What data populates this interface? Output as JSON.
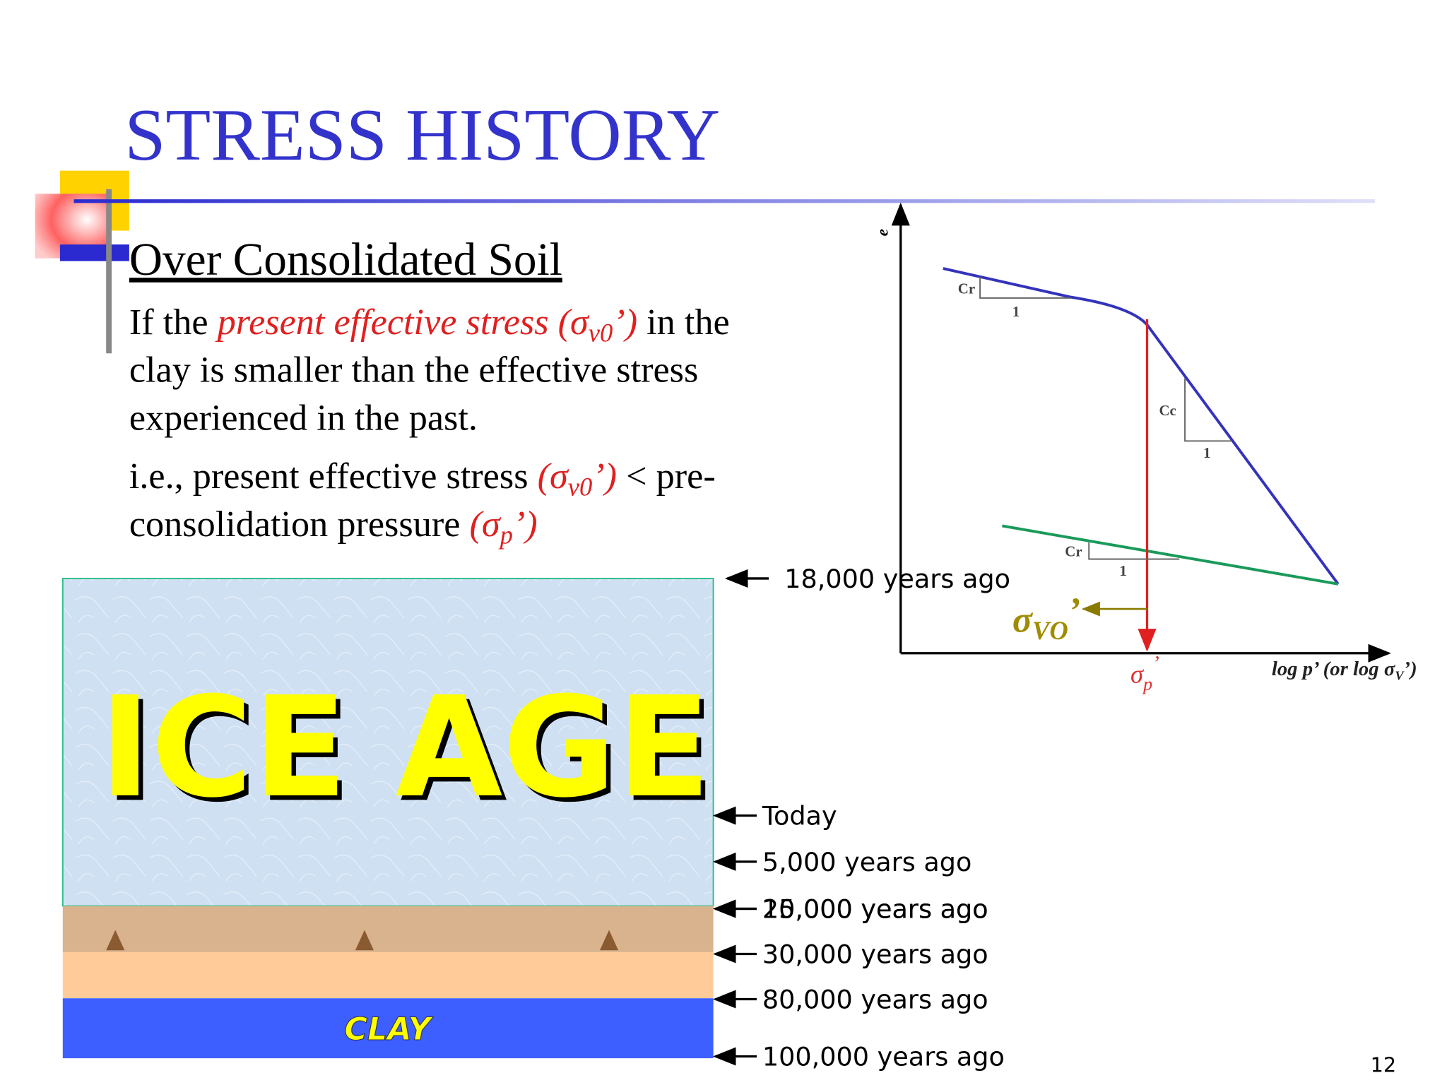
{
  "title": "STRESS HISTORY",
  "subtitle": "Over Consolidated Soil",
  "paragraph_1": [
    [
      "If the ",
      "present effective stress (σ",
      "v0",
      "’)",
      " in the"
    ],
    [
      "clay is smaller than the effective stress"
    ],
    [
      "experienced in the past."
    ]
  ],
  "paragraph_2": [
    [
      "i.e., present effective stress ",
      "(σ",
      "v0",
      "’)",
      " < pre-"
    ],
    [
      "consolidation pressure ",
      "(σ",
      "p",
      "’)"
    ]
  ],
  "illustration": {
    "ice_label": "ICE AGE",
    "clay_label": "CLAY",
    "timeline": [
      "18,000 years ago",
      "Today",
      "5,000 years ago",
      "15,000 years ago",
      "20,000 years ago",
      "30,000 years ago",
      "80,000 years ago",
      "100,000 years ago"
    ]
  },
  "diagram": {
    "y_axis_label": "e",
    "x_axis_label": [
      "log p’ (or log σ",
      "V",
      "’)"
    ],
    "sigma_p": [
      "σ",
      "p",
      "’"
    ],
    "sigma_vo": [
      "σ",
      "VO",
      "’"
    ],
    "slope_labels": [
      "Cr",
      "1",
      "Cc",
      "1",
      "Cr",
      "1"
    ]
  },
  "page_number": "12"
}
